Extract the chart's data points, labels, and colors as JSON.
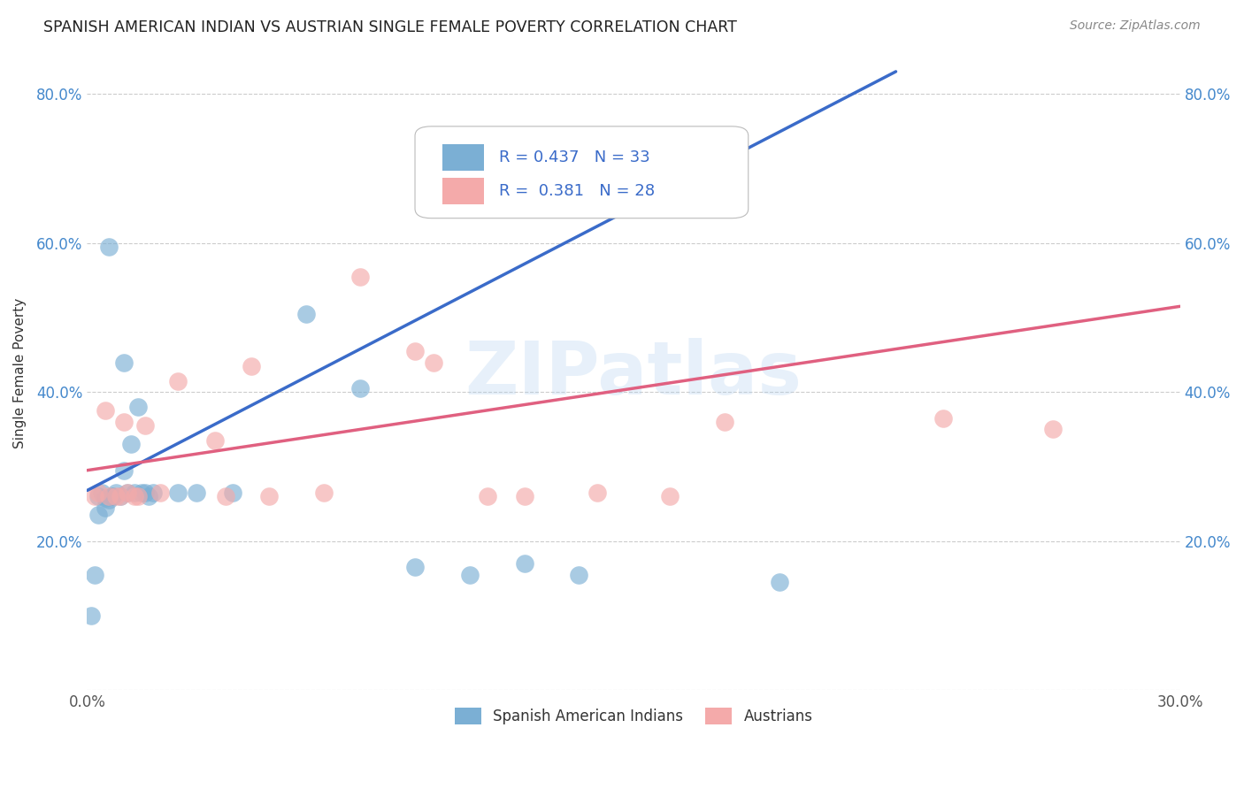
{
  "title": "SPANISH AMERICAN INDIAN VS AUSTRIAN SINGLE FEMALE POVERTY CORRELATION CHART",
  "source": "Source: ZipAtlas.com",
  "ylabel": "Single Female Poverty",
  "xlim": [
    0.0,
    0.3
  ],
  "ylim": [
    0.0,
    0.85
  ],
  "watermark": "ZIPatlas",
  "color_blue": "#7BAFD4",
  "color_pink": "#F4AAAA",
  "color_blue_line": "#3A6BC9",
  "color_pink_line": "#E06080",
  "legend_label_blue": "Spanish American Indians",
  "legend_label_pink": "Austrians",
  "blue_line_x": [
    0.0,
    0.222
  ],
  "blue_line_y": [
    0.268,
    0.83
  ],
  "pink_line_x": [
    0.0,
    0.3
  ],
  "pink_line_y": [
    0.295,
    0.515
  ],
  "blue_x": [
    0.001,
    0.002,
    0.003,
    0.003,
    0.004,
    0.005,
    0.005,
    0.006,
    0.006,
    0.007,
    0.007,
    0.008,
    0.009,
    0.01,
    0.01,
    0.011,
    0.012,
    0.013,
    0.014,
    0.015,
    0.016,
    0.017,
    0.018,
    0.025,
    0.03,
    0.04,
    0.06,
    0.075,
    0.09,
    0.105,
    0.12,
    0.135,
    0.19
  ],
  "blue_y": [
    0.1,
    0.155,
    0.235,
    0.26,
    0.265,
    0.245,
    0.258,
    0.255,
    0.595,
    0.26,
    0.26,
    0.265,
    0.26,
    0.295,
    0.44,
    0.265,
    0.33,
    0.265,
    0.38,
    0.265,
    0.265,
    0.26,
    0.265,
    0.265,
    0.265,
    0.265,
    0.505,
    0.405,
    0.165,
    0.155,
    0.17,
    0.155,
    0.145
  ],
  "pink_x": [
    0.002,
    0.003,
    0.005,
    0.006,
    0.008,
    0.009,
    0.01,
    0.011,
    0.013,
    0.014,
    0.016,
    0.02,
    0.025,
    0.035,
    0.038,
    0.045,
    0.05,
    0.065,
    0.075,
    0.09,
    0.095,
    0.11,
    0.12,
    0.14,
    0.16,
    0.175,
    0.235,
    0.265
  ],
  "pink_y": [
    0.26,
    0.265,
    0.375,
    0.26,
    0.26,
    0.26,
    0.36,
    0.265,
    0.26,
    0.26,
    0.355,
    0.265,
    0.415,
    0.335,
    0.26,
    0.435,
    0.26,
    0.265,
    0.555,
    0.455,
    0.44,
    0.26,
    0.26,
    0.265,
    0.26,
    0.36,
    0.365,
    0.35
  ]
}
